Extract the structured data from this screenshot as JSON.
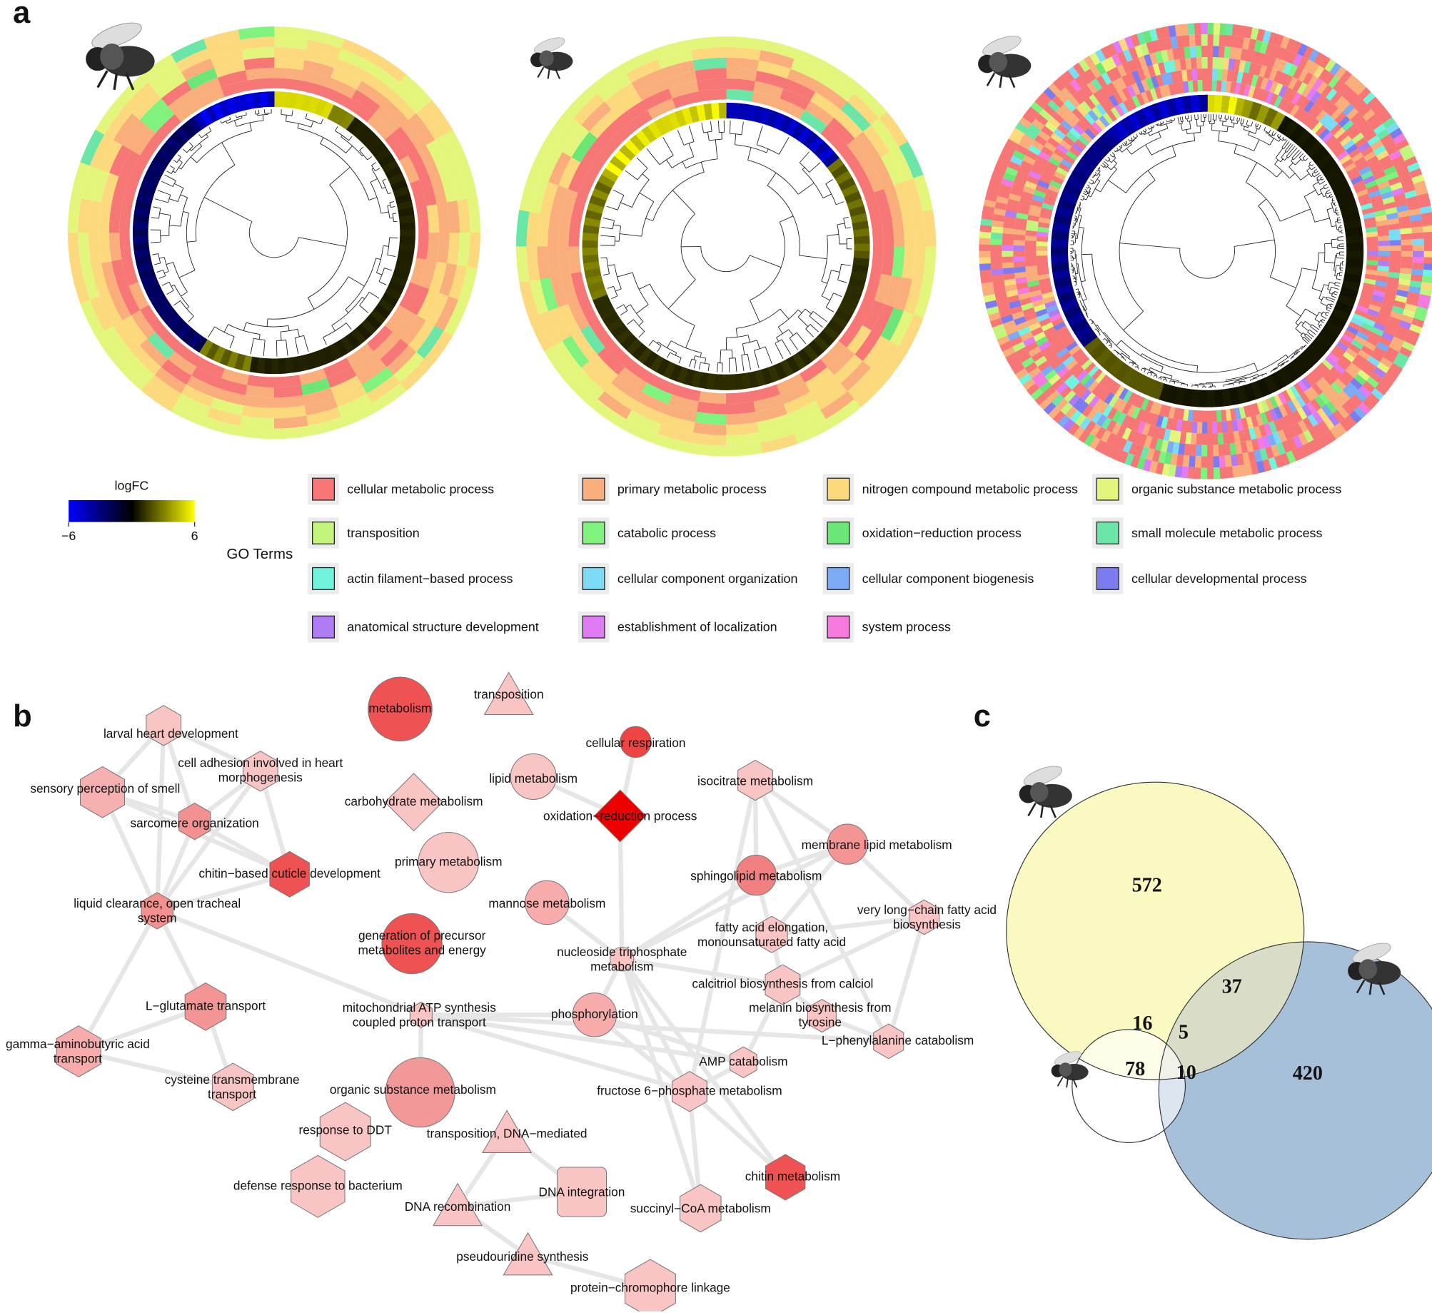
{
  "panel_labels": [
    "a",
    "b",
    "c"
  ],
  "logfc_legend": {
    "title": "logFC",
    "lim": [
      -6,
      6
    ],
    "ticks": [
      {
        "value": -6,
        "label": "−6"
      },
      6
    ],
    "colors": [
      "#0000ff",
      "#000000",
      "#ffff00"
    ]
  },
  "go_terms": {
    "title": "GO Terms",
    "items": [
      {
        "label": "cellular metabolic process",
        "color": "#f77676"
      },
      {
        "label": "primary metabolic process",
        "color": "#f9ae7c"
      },
      {
        "label": "nitrogen compound metabolic process",
        "color": "#fbd97c"
      },
      {
        "label": "organic substance metabolic process",
        "color": "#e4f57c"
      },
      {
        "label": "transposition",
        "color": "#c3f57c"
      },
      {
        "label": "catabolic process",
        "color": "#80f27e"
      },
      {
        "label": "oxidation−reduction process",
        "color": "#6ce676"
      },
      {
        "label": "small molecule metabolic process",
        "color": "#6ce6a6"
      },
      {
        "label": "actin filament−based process",
        "color": "#72f3dd"
      },
      {
        "label": "cellular component organization",
        "color": "#7cdcf6"
      },
      {
        "label": "cellular component biogenesis",
        "color": "#7caaf5"
      },
      {
        "label": "cellular developmental process",
        "color": "#7c7cf0"
      },
      {
        "label": "anatomical structure development",
        "color": "#b07cf3"
      },
      {
        "label": "establishment of localization",
        "color": "#e07cf3"
      },
      {
        "label": "system process",
        "color": "#f57ade"
      }
    ]
  },
  "network": {
    "nodes": [
      {
        "label": [
          "metabolism"
        ],
        "shape": "circle",
        "color": "#ef5252"
      },
      {
        "label": [
          "transposition"
        ],
        "shape": "triangle",
        "color": "#f9c4c4"
      },
      {
        "label": [
          "larval heart development"
        ],
        "shape": "hexagon",
        "color": "#f9c4c4"
      },
      {
        "label": [
          "cell adhesion involved in heart",
          "morphogenesis"
        ],
        "shape": "hexagon",
        "color": "#f9c4c4"
      },
      {
        "label": [
          "sensory perception of smell"
        ],
        "shape": "hexagon",
        "color": "#f7b0b0"
      },
      {
        "label": [
          "sarcomere organization"
        ],
        "shape": "hexagon",
        "color": "#f39090"
      },
      {
        "label": [
          "chitin−based cuticle development"
        ],
        "shape": "hexagon",
        "color": "#ee5252"
      },
      {
        "label": [
          "liquid clearance, open tracheal",
          "system"
        ],
        "shape": "hexagon",
        "color": "#f39090"
      },
      {
        "label": [
          "carbohydrate metabolism"
        ],
        "shape": "diamond",
        "color": "#f9c4c4"
      },
      {
        "label": [
          "lipid metabolism"
        ],
        "shape": "circle",
        "color": "#f9c4c4"
      },
      {
        "label": [
          "cellular respiration"
        ],
        "shape": "circle",
        "color": "#ee4444"
      },
      {
        "label": [
          "oxidation−reduction process"
        ],
        "shape": "diamond",
        "color": "#ee0000"
      },
      {
        "label": [
          "primary metabolism"
        ],
        "shape": "circle",
        "color": "#f9c4c4"
      },
      {
        "label": [
          "mannose metabolism"
        ],
        "shape": "circle",
        "color": "#f7abab"
      },
      {
        "label": [
          "generation of precursor",
          "metabolites and energy"
        ],
        "shape": "circle",
        "color": "#ee5252"
      },
      {
        "label": [
          "isocitrate metabolism"
        ],
        "shape": "hexagon",
        "color": "#f9c4c4"
      },
      {
        "label": [
          "membrane lipid metabolism"
        ],
        "shape": "circle",
        "color": "#f39595"
      },
      {
        "label": [
          "sphingolipid metabolism"
        ],
        "shape": "circle",
        "color": "#f28080"
      },
      {
        "label": [
          "very long−chain fatty acid",
          "biosynthesis"
        ],
        "shape": "hexagon",
        "color": "#f9c4c4"
      },
      {
        "label": [
          "fatty acid elongation,",
          "monounsaturated fatty acid"
        ],
        "shape": "hexagon",
        "color": "#f9c4c4"
      },
      {
        "label": [
          "nucleoside triphosphate",
          "metabolism"
        ],
        "shape": "circle",
        "color": "#f9c4c4"
      },
      {
        "label": [
          "calcitriol biosynthesis from calciol"
        ],
        "shape": "hexagon",
        "color": "#f9c4c4"
      },
      {
        "label": [
          "melanin biosynthesis from",
          "tyrosine"
        ],
        "shape": "hexagon",
        "color": "#f9c4c4"
      },
      {
        "label": [
          "L−phenylalanine catabolism"
        ],
        "shape": "hexagon",
        "color": "#f9c4c4"
      },
      {
        "label": [
          "L−glutamate transport"
        ],
        "shape": "hexagon",
        "color": "#f39595"
      },
      {
        "label": [
          "mitochondrial ATP synthesis",
          "coupled proton transport"
        ],
        "shape": "hexagon",
        "color": "#f9c4c4"
      },
      {
        "label": [
          "phosphorylation"
        ],
        "shape": "circle",
        "color": "#f7abab"
      },
      {
        "label": [
          "gamma−aminobutyric acid",
          "transport"
        ],
        "shape": "hexagon",
        "color": "#f7abab"
      },
      {
        "label": [
          "AMP catabolism"
        ],
        "shape": "hexagon",
        "color": "#f9c4c4"
      },
      {
        "label": [
          "cysteine transmembrane",
          "transport"
        ],
        "shape": "hexagon",
        "color": "#f9c4c4"
      },
      {
        "label": [
          "organic substance metabolism"
        ],
        "shape": "circle",
        "color": "#f39898"
      },
      {
        "label": [
          "fructose 6−phosphate metabolism"
        ],
        "shape": "hexagon",
        "color": "#f9c4c4"
      },
      {
        "label": [
          "response to DDT"
        ],
        "shape": "hexagon",
        "color": "#f9c4c4"
      },
      {
        "label": [
          "transposition, DNA−mediated"
        ],
        "shape": "triangle",
        "color": "#f9c4c4"
      },
      {
        "label": [
          "defense response to bacterium"
        ],
        "shape": "hexagon",
        "color": "#f9c4c4"
      },
      {
        "label": [
          "DNA integration"
        ],
        "shape": "square",
        "color": "#f9c4c4"
      },
      {
        "label": [
          "chitin metabolism"
        ],
        "shape": "hexagon",
        "color": "#ee5252"
      },
      {
        "label": [
          "DNA recombination"
        ],
        "shape": "triangle",
        "color": "#f9c4c4"
      },
      {
        "label": [
          "succinyl−CoA metabolism"
        ],
        "shape": "hexagon",
        "color": "#f9c4c4"
      },
      {
        "label": [
          "pseudouridine synthesis"
        ],
        "shape": "triangle",
        "color": "#f9c4c4"
      },
      {
        "label": [
          "protein−chromophore linkage"
        ],
        "shape": "hexagon",
        "color": "#f9c4c4"
      }
    ]
  },
  "venn": {
    "colors": [
      "#fbf9c2",
      "#a6c0da",
      "#ffffff",
      "#d9dcc6"
    ],
    "regions": [
      572,
      37,
      16,
      5,
      78,
      10,
      420
    ]
  }
}
